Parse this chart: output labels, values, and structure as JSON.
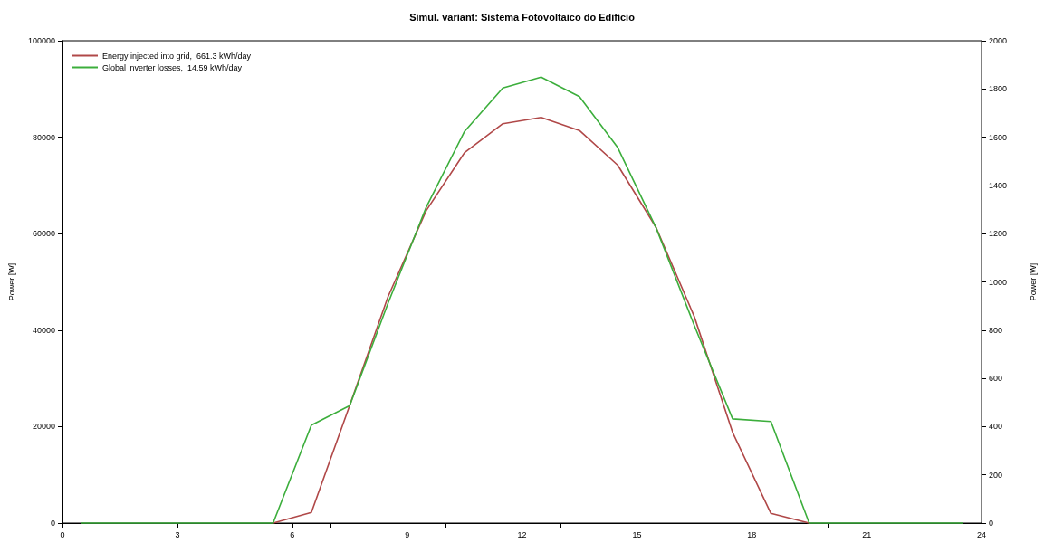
{
  "chart_data": {
    "type": "line",
    "title": "Simul. variant: Sistema Fotovoltaico do Edifício",
    "ylabel": "Power [W]",
    "y2label": "Power [W]",
    "x": [
      0.5,
      1.5,
      2.5,
      3.5,
      4.5,
      5.5,
      6.5,
      7.5,
      8.5,
      9.5,
      10.5,
      11.5,
      12.5,
      13.5,
      14.5,
      15.5,
      16.5,
      17.5,
      18.5,
      19.5,
      20.5,
      21.5,
      22.5,
      23.5
    ],
    "series": [
      {
        "name": "Energy injected into grid,  661.3 kWh/day",
        "color": "#b04848",
        "values": [
          null,
          null,
          null,
          null,
          null,
          0,
          2200,
          24400,
          46900,
          64800,
          76800,
          82800,
          84100,
          81400,
          74200,
          61300,
          42800,
          18800,
          2000,
          0,
          null,
          null,
          null,
          null
        ]
      },
      {
        "name": "Global inverter losses,  14.59 kWh/day",
        "color": "#3cae3c",
        "axis": "y2",
        "values": [
          0,
          0,
          0,
          0,
          0,
          0,
          406,
          487,
          911,
          1310,
          1624,
          1804,
          1849,
          1768,
          1557,
          1225,
          819,
          432,
          421,
          0,
          0,
          0,
          0,
          0
        ]
      }
    ],
    "xlim": [
      0,
      24
    ],
    "xticks": [
      0,
      {
        "value": 1,
        "label": null
      },
      {
        "value": 2,
        "label": null
      },
      3,
      {
        "value": 4,
        "label": null
      },
      {
        "value": 5,
        "label": null
      },
      6,
      {
        "value": 7,
        "label": null
      },
      {
        "value": 8,
        "label": null
      },
      9,
      {
        "value": 10,
        "label": null
      },
      {
        "value": 11,
        "label": null
      },
      12,
      {
        "value": 13,
        "label": null
      },
      {
        "value": 14,
        "label": null
      },
      15,
      {
        "value": 16,
        "label": null
      },
      {
        "value": 17,
        "label": null
      },
      18,
      {
        "value": 19,
        "label": null
      },
      {
        "value": 20,
        "label": null
      },
      21,
      {
        "value": 22,
        "label": null
      },
      {
        "value": 23,
        "label": null
      },
      24
    ],
    "ylim": [
      0,
      100000
    ],
    "yticks": [
      0,
      20000,
      40000,
      60000,
      80000,
      100000
    ],
    "y2lim": [
      0,
      2000
    ],
    "y2ticks": [
      0,
      200,
      400,
      600,
      800,
      1000,
      1200,
      1400,
      1600,
      1800,
      2000
    ],
    "legend": "top left",
    "grid": false,
    "marker": "none",
    "line_style": "solid"
  }
}
